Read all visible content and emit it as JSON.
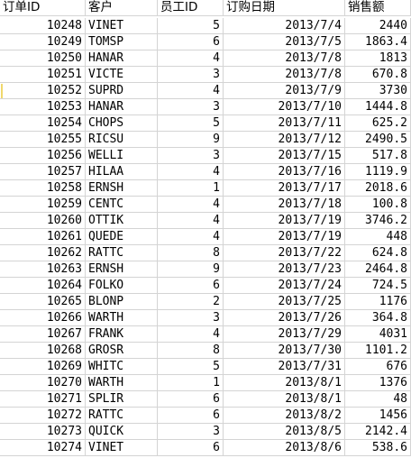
{
  "sheet": {
    "headers": [
      "订单ID",
      "客户",
      "员工ID",
      "订购日期",
      "销售额"
    ],
    "rows": [
      [
        "10248",
        "VINET",
        "5",
        "2013/7/4",
        "2440"
      ],
      [
        "10249",
        "TOMSP",
        "6",
        "2013/7/5",
        "1863.4"
      ],
      [
        "10250",
        "HANAR",
        "4",
        "2013/7/8",
        "1813"
      ],
      [
        "10251",
        "VICTE",
        "3",
        "2013/7/8",
        "670.8"
      ],
      [
        "10252",
        "SUPRD",
        "4",
        "2013/7/9",
        "3730"
      ],
      [
        "10253",
        "HANAR",
        "3",
        "2013/7/10",
        "1444.8"
      ],
      [
        "10254",
        "CHOPS",
        "5",
        "2013/7/11",
        "625.2"
      ],
      [
        "10255",
        "RICSU",
        "9",
        "2013/7/12",
        "2490.5"
      ],
      [
        "10256",
        "WELLI",
        "3",
        "2013/7/15",
        "517.8"
      ],
      [
        "10257",
        "HILAA",
        "4",
        "2013/7/16",
        "1119.9"
      ],
      [
        "10258",
        "ERNSH",
        "1",
        "2013/7/17",
        "2018.6"
      ],
      [
        "10259",
        "CENTC",
        "4",
        "2013/7/18",
        "100.8"
      ],
      [
        "10260",
        "OTTIK",
        "4",
        "2013/7/19",
        "3746.2"
      ],
      [
        "10261",
        "QUEDE",
        "4",
        "2013/7/19",
        "448"
      ],
      [
        "10262",
        "RATTC",
        "8",
        "2013/7/22",
        "624.8"
      ],
      [
        "10263",
        "ERNSH",
        "9",
        "2013/7/23",
        "2464.8"
      ],
      [
        "10264",
        "FOLKO",
        "6",
        "2013/7/24",
        "724.5"
      ],
      [
        "10265",
        "BLONP",
        "2",
        "2013/7/25",
        "1176"
      ],
      [
        "10266",
        "WARTH",
        "3",
        "2013/7/26",
        "364.8"
      ],
      [
        "10267",
        "FRANK",
        "4",
        "2013/7/29",
        "4031"
      ],
      [
        "10268",
        "GROSR",
        "8",
        "2013/7/30",
        "1101.2"
      ],
      [
        "10269",
        "WHITC",
        "5",
        "2013/7/31",
        "676"
      ],
      [
        "10270",
        "WARTH",
        "1",
        "2013/8/1",
        "1376"
      ],
      [
        "10271",
        "SPLIR",
        "6",
        "2013/8/1",
        "48"
      ],
      [
        "10272",
        "RATTC",
        "6",
        "2013/8/2",
        "1456"
      ],
      [
        "10273",
        "QUICK",
        "3",
        "2013/8/5",
        "2142.4"
      ],
      [
        "10274",
        "VINET",
        "6",
        "2013/8/6",
        "538.6"
      ]
    ]
  }
}
